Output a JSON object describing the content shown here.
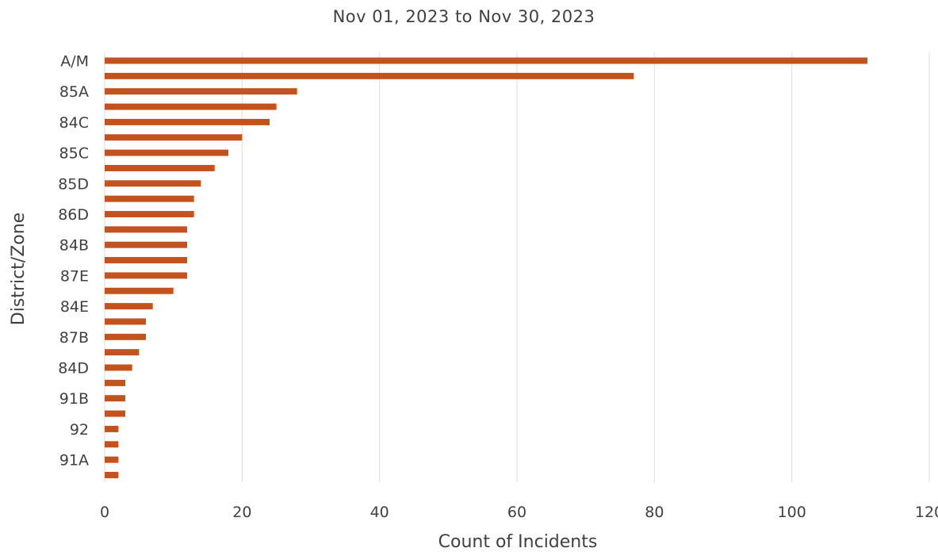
{
  "chart_data": {
    "type": "bar",
    "orientation": "horizontal",
    "title": "Nov 01, 2023 to Nov 30, 2023",
    "xlabel": "Count of Incidents",
    "ylabel": "District/Zone",
    "xlim": [
      0,
      120
    ],
    "xticks": [
      "0",
      "20",
      "40",
      "60",
      "80",
      "100",
      "120"
    ],
    "grid": true,
    "bar_color": "#c4521f",
    "categories": [
      "A/M",
      "",
      "85A",
      "",
      "84C",
      "",
      "85C",
      "",
      "85D",
      "",
      "86D",
      "",
      "84B",
      "",
      "87E",
      "",
      "84E",
      "",
      "87B",
      "",
      "84D",
      "",
      "91B",
      "",
      "92",
      "",
      "91A",
      ""
    ],
    "values": [
      111,
      77,
      28,
      25,
      24,
      20,
      18,
      16,
      14,
      13,
      13,
      12,
      12,
      12,
      12,
      10,
      7,
      6,
      6,
      5,
      4,
      3,
      3,
      3,
      2,
      2,
      2,
      2
    ]
  }
}
